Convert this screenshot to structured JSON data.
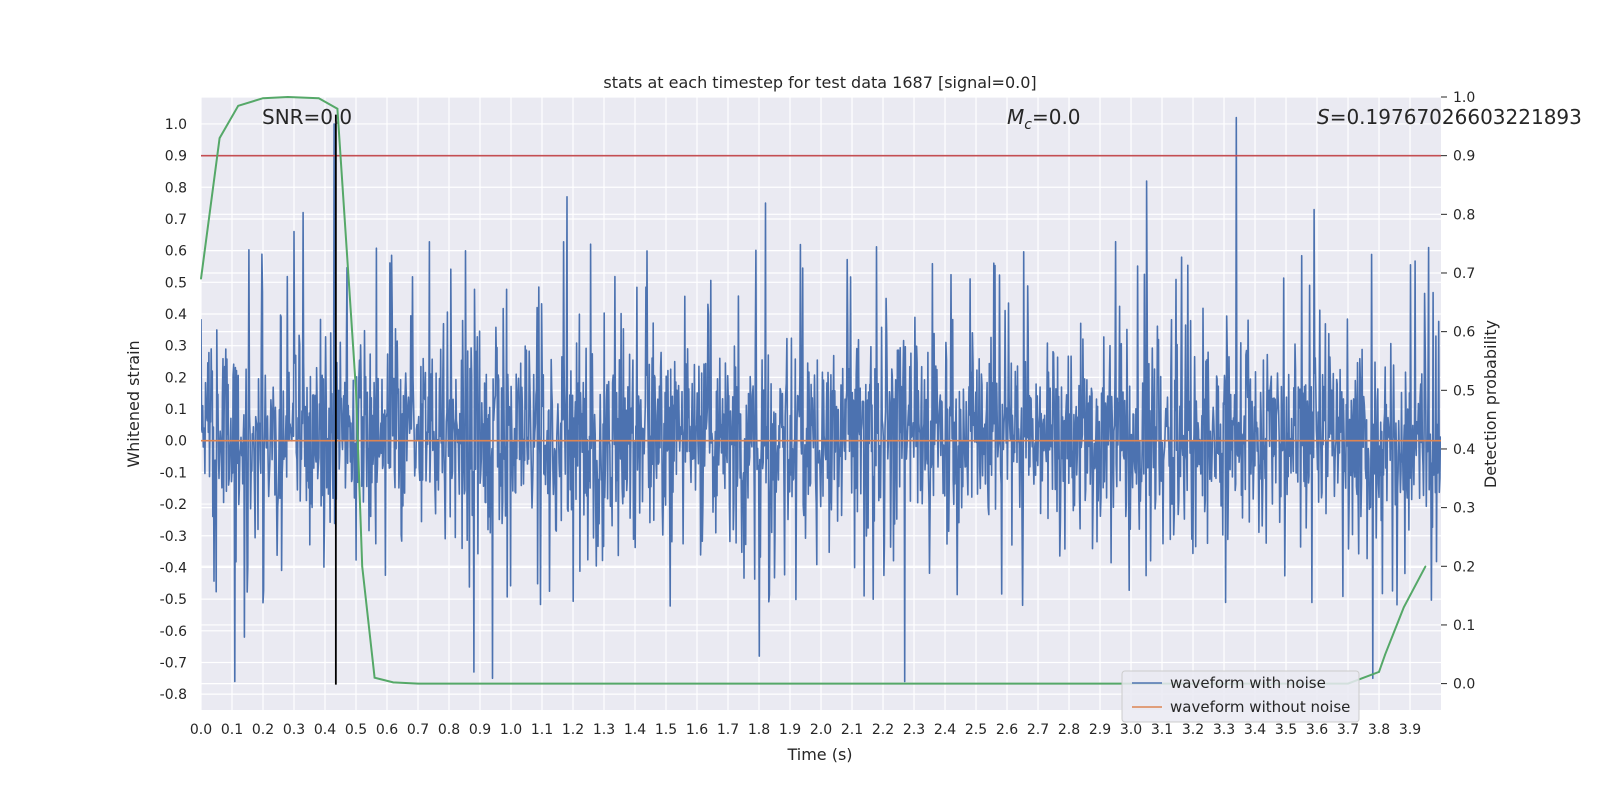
{
  "chart_data": {
    "type": "line",
    "title": "stats at each timestep for test data 1687 [signal=0.0]",
    "xlabel": "Time (s)",
    "ylabel": "Whitened strain",
    "y2label": "Detection probability",
    "xlim": [
      0.0,
      3.9999
    ],
    "ylim": [
      -0.85,
      1.085
    ],
    "y2lim": [
      -0.045,
      1.0
    ],
    "xticks": [
      "0.0",
      "0.1",
      "0.2",
      "0.3",
      "0.4",
      "0.5",
      "0.6",
      "0.7",
      "0.8",
      "0.9",
      "1.0",
      "1.1",
      "1.2",
      "1.3",
      "1.4",
      "1.5",
      "1.6",
      "1.7",
      "1.8",
      "1.9",
      "2.0",
      "2.1",
      "2.2",
      "2.3",
      "2.4",
      "2.5",
      "2.6",
      "2.7",
      "2.8",
      "2.9",
      "3.0",
      "3.1",
      "3.2",
      "3.3",
      "3.4",
      "3.5",
      "3.6",
      "3.7",
      "3.8",
      "3.9"
    ],
    "yticks": [
      "-0.8",
      "-0.7",
      "-0.6",
      "-0.5",
      "-0.4",
      "-0.3",
      "-0.2",
      "-0.1",
      "0.0",
      "0.1",
      "0.2",
      "0.3",
      "0.4",
      "0.5",
      "0.6",
      "0.7",
      "0.8",
      "0.9",
      "1.0"
    ],
    "y2ticks": [
      "0.0",
      "0.1",
      "0.2",
      "0.3",
      "0.4",
      "0.5",
      "0.6",
      "0.7",
      "0.8",
      "0.9",
      "1.0"
    ],
    "annotations": {
      "snr": "SNR=0.0",
      "mc_symbol": "M",
      "mc_sub": "c",
      "mc_value": "=0.0",
      "s_symbol": "S",
      "s_value": "=0.19767026603221893"
    },
    "threshold_line": {
      "y": 0.9,
      "axis": "right",
      "color": "#c44e52"
    },
    "marker_line": {
      "x": 0.435,
      "color": "#000000"
    },
    "series": [
      {
        "name": "waveform with noise",
        "color": "#4c72b0",
        "envelope_typical": [
          -0.35,
          0.42
        ],
        "spikes": [
          {
            "x": 0.11,
            "y": -0.76
          },
          {
            "x": 0.14,
            "y": -0.62
          },
          {
            "x": 0.3,
            "y": 0.66
          },
          {
            "x": 0.33,
            "y": 0.72
          },
          {
            "x": 0.43,
            "y": 1.0
          },
          {
            "x": 0.88,
            "y": -0.73
          },
          {
            "x": 0.94,
            "y": -0.75
          },
          {
            "x": 1.18,
            "y": 0.77
          },
          {
            "x": 1.8,
            "y": -0.68
          },
          {
            "x": 1.82,
            "y": 0.75
          },
          {
            "x": 2.27,
            "y": -0.76
          },
          {
            "x": 3.05,
            "y": 0.82
          },
          {
            "x": 3.34,
            "y": 1.02
          },
          {
            "x": 3.59,
            "y": 0.73
          },
          {
            "x": 3.78,
            "y": -0.75
          },
          {
            "x": 3.96,
            "y": 0.61
          }
        ]
      },
      {
        "name": "waveform without noise",
        "color": "#dd8452",
        "constant": 0.0
      },
      {
        "name": "detection probability",
        "axis": "right",
        "color": "#55a868",
        "x": [
          0.0,
          0.06,
          0.12,
          0.2,
          0.28,
          0.38,
          0.44,
          0.5,
          0.52,
          0.56,
          0.62,
          0.7,
          3.0,
          3.7,
          3.8,
          3.82,
          3.88,
          3.95
        ],
        "y": [
          0.69,
          0.93,
          0.985,
          0.998,
          1.0,
          0.998,
          0.98,
          0.5,
          0.2,
          0.01,
          0.002,
          0.0,
          0.0,
          0.0,
          0.02,
          0.05,
          0.13,
          0.2
        ]
      }
    ],
    "legend": {
      "position": "lower right",
      "entries": [
        "waveform with noise",
        "waveform without noise"
      ]
    }
  }
}
